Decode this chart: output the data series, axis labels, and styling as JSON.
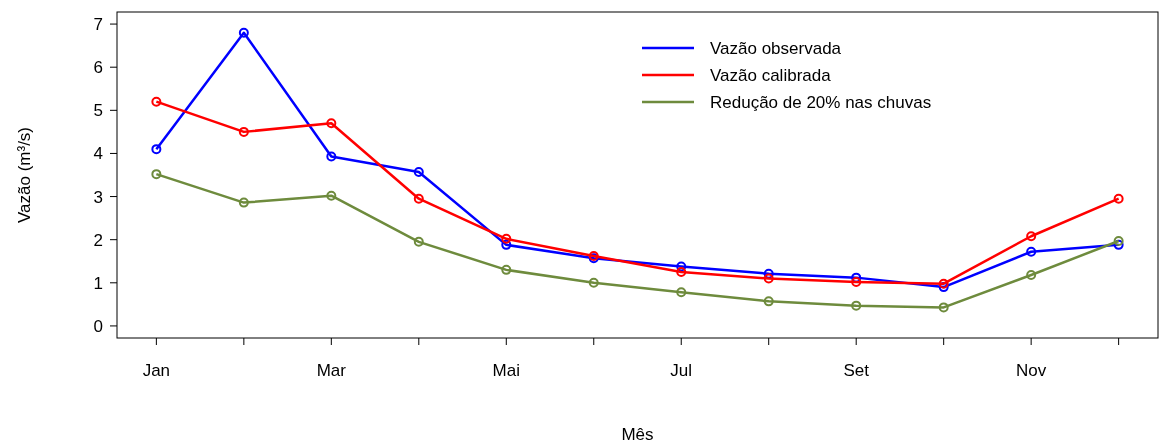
{
  "chart_data": {
    "type": "line",
    "xlabel": "Mês",
    "ylabel": "Vazão (m³/s)",
    "categories": [
      "Jan",
      null,
      "Mar",
      null,
      "Mai",
      null,
      "Jul",
      null,
      "Set",
      null,
      "Nov",
      null
    ],
    "series": [
      {
        "name": "Vazão observada",
        "color": "#0000ff",
        "values": [
          4.1,
          6.8,
          3.93,
          3.57,
          1.88,
          1.57,
          1.38,
          1.21,
          1.12,
          0.9,
          1.72,
          1.88
        ]
      },
      {
        "name": "Vazão calibrada",
        "color": "#ff0000",
        "values": [
          5.2,
          4.5,
          4.7,
          2.95,
          2.02,
          1.62,
          1.25,
          1.1,
          1.02,
          0.98,
          2.08,
          2.95
        ]
      },
      {
        "name": "Redução de 20% nas chuvas",
        "color": "#6e8b3d",
        "values": [
          3.52,
          2.86,
          3.02,
          1.95,
          1.3,
          1.0,
          0.78,
          0.57,
          0.47,
          0.43,
          1.18,
          1.97
        ]
      }
    ],
    "ylim": [
      -0.28,
      7.28
    ],
    "yticks": [
      0,
      1,
      2,
      3,
      4,
      5,
      6,
      7
    ],
    "grid": false,
    "legend": "top right",
    "marker": "circle",
    "line_style": "solid"
  }
}
